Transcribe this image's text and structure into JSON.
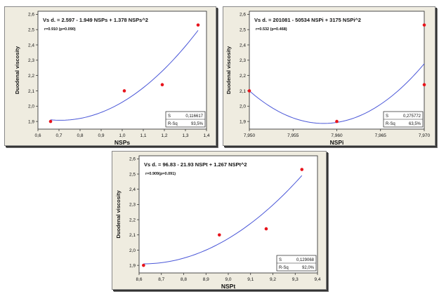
{
  "colors": {
    "panel_bg": "#efece0",
    "plot_bg": "#ffffff",
    "curve": "#4a57d8",
    "point": "#e8141c"
  },
  "chart_data": [
    {
      "type": "scatter",
      "equation": "Vs d. =  2.597 - 1.949 NSPs   + 1.378 NSPs^2",
      "correlation": "r=0.910 (p=0.090)",
      "xlabel": "NSPs",
      "ylabel": "Duodenal viscosity",
      "xlim": [
        0.6,
        1.4
      ],
      "ylim": [
        1.85,
        2.62
      ],
      "x_ticks": [
        "0,6",
        "0,7",
        "0,8",
        "0,9",
        "1,0",
        "1,1",
        "1,2",
        "1,3",
        "1,4"
      ],
      "y_ticks": [
        "1,9",
        "2,0",
        "2,1",
        "2,2",
        "2,3",
        "2,4",
        "2,5",
        "2,6"
      ],
      "points": [
        [
          0.66,
          1.9
        ],
        [
          1.01,
          2.1
        ],
        [
          1.19,
          2.14
        ],
        [
          1.36,
          2.53
        ]
      ],
      "fit": {
        "a": 2.597,
        "b": -1.949,
        "c": 1.378,
        "x_from": 0.66,
        "x_to": 1.36
      },
      "stats": {
        "s_label": "S",
        "s_value": "0,116617",
        "r_label": "R-Sq",
        "r_value": "93,5%"
      },
      "grid": false
    },
    {
      "type": "scatter",
      "equation": "Vs d. =  201081 - 50534 NSPi   + 3175 NSPi^2",
      "correlation": "r=0.532 (p=0.468)",
      "xlabel": "NSPi",
      "ylabel": "Duodenal viscosity",
      "xlim": [
        7.95,
        7.97
      ],
      "ylim": [
        1.85,
        2.62
      ],
      "x_ticks": [
        "7,950",
        "7,955",
        "7,960",
        "7,965",
        "7,970"
      ],
      "y_ticks": [
        "1,9",
        "2,0",
        "2,1",
        "2,2",
        "2,3",
        "2,4",
        "2,5",
        "2,6"
      ],
      "points": [
        [
          7.95,
          2.1
        ],
        [
          7.96,
          1.9
        ],
        [
          7.97,
          2.53
        ],
        [
          7.97,
          2.14
        ]
      ],
      "fit": {
        "vertex_x": 7.9585,
        "vertex_y": 1.887,
        "x_from": 7.95,
        "x_to": 7.97,
        "y_at_from": 2.1
      },
      "stats": {
        "s_label": "S",
        "s_value": "0,275772",
        "r_label": "R-Sq",
        "r_value": "63,5%"
      },
      "grid": false
    },
    {
      "type": "scatter",
      "equation": "Vs d. =  96.83 - 21.93 NSPt   + 1.267 NSPt^2",
      "correlation": "r=0.909(p=0.091)",
      "xlabel": "NSPt",
      "ylabel": "Duodenal viscosity",
      "xlim": [
        8.6,
        9.4
      ],
      "ylim": [
        1.85,
        2.62
      ],
      "x_ticks": [
        "8,6",
        "8,7",
        "8,8",
        "8,9",
        "9,0",
        "9,1",
        "9,2",
        "9,3",
        "9,4"
      ],
      "y_ticks": [
        "1,9",
        "2,0",
        "2,1",
        "2,2",
        "2,3",
        "2,4",
        "2,5",
        "2,6"
      ],
      "points": [
        [
          8.62,
          1.9
        ],
        [
          8.96,
          2.1
        ],
        [
          9.17,
          2.14
        ],
        [
          9.33,
          2.53
        ]
      ],
      "fit": {
        "vertex_x": 8.62,
        "vertex_y": 1.91,
        "x_from": 8.62,
        "x_to": 9.33,
        "y_at_to": 2.49
      },
      "stats": {
        "s_label": "S",
        "s_value": "0,129068",
        "r_label": "R-Sq",
        "r_value": "92,0%"
      },
      "grid": false
    }
  ]
}
